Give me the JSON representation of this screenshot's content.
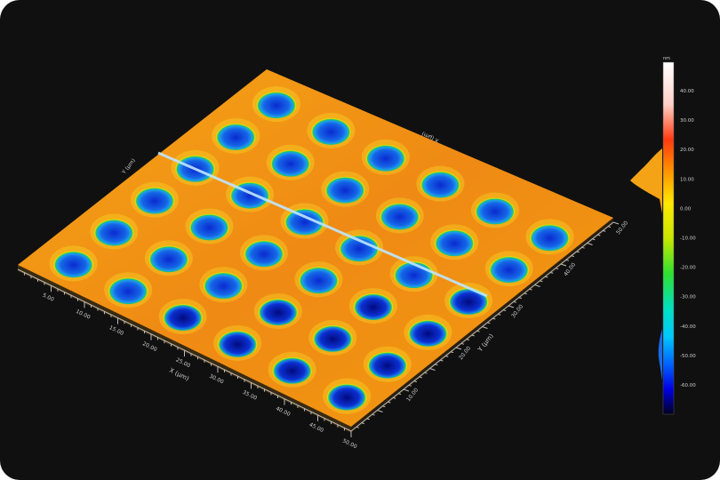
{
  "surface": {
    "x_axis": {
      "label": "X (µm)",
      "ticks": [
        "5.00",
        "10.00",
        "15.00",
        "20.00",
        "25.00",
        "30.00",
        "35.00",
        "40.00",
        "45.00",
        "50.00"
      ]
    },
    "y_axis": {
      "label": "Y (µm)",
      "ticks": [
        "10.00",
        "20.00",
        "30.00",
        "40.00",
        "50.00"
      ]
    },
    "back_x_label": "X (µm)",
    "back_y_label": "Y (µm)",
    "grid_holes": {
      "rows": 6,
      "cols": 6
    },
    "colors": {
      "plateau": "#f29a12",
      "hole": "#1060e0",
      "profile_line": "#bfe6ff"
    }
  },
  "colorbar": {
    "unit": "nm",
    "ticks": [
      "40.00",
      "30.00",
      "20.00",
      "10.00",
      "0.00",
      "-10.00",
      "-20.00",
      "-30.00",
      "-40.00",
      "-50.00",
      "-60.00"
    ]
  }
}
